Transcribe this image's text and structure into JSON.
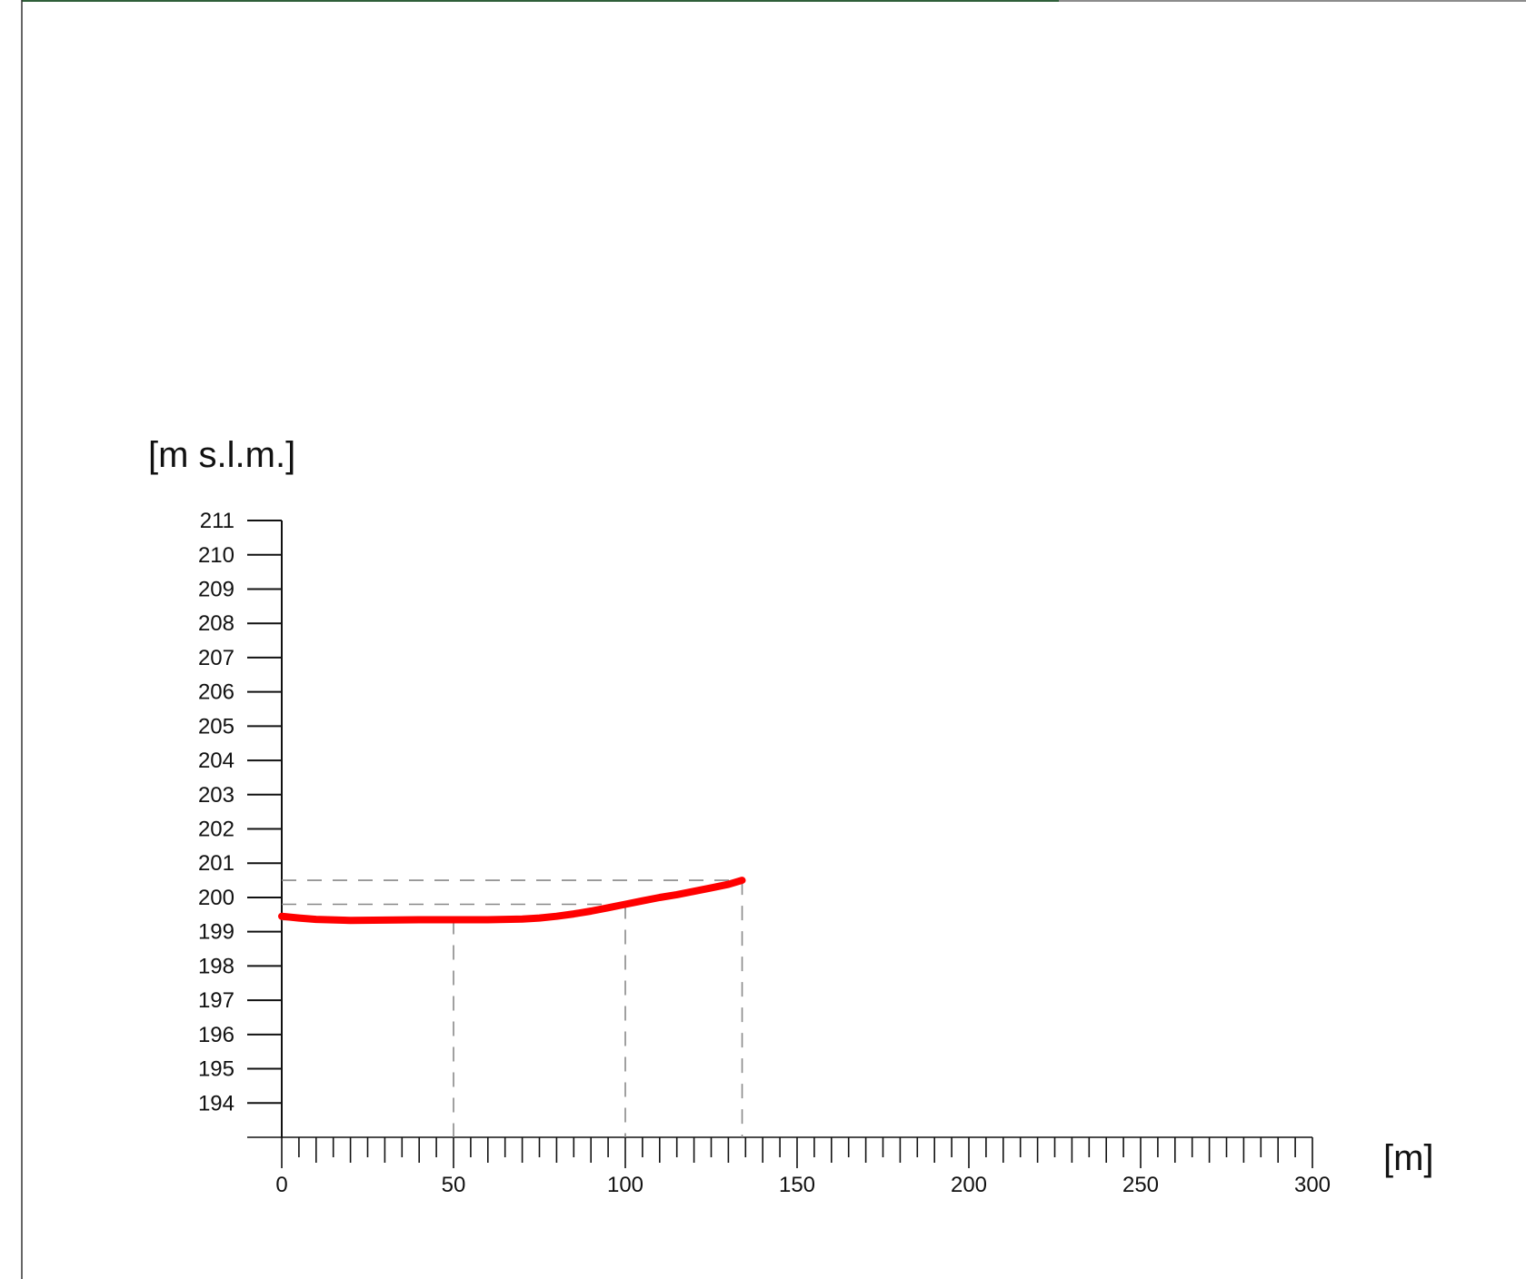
{
  "chart_data": {
    "type": "line",
    "title": "",
    "xlabel": "[m]",
    "ylabel": "[m s.l.m.]",
    "xlim": [
      0,
      300
    ],
    "ylim": [
      193,
      211
    ],
    "x_ticks": [
      "0",
      "50",
      "100",
      "150",
      "200",
      "250",
      "300"
    ],
    "y_ticks": [
      "194",
      "195",
      "196",
      "197",
      "198",
      "199",
      "200",
      "201",
      "202",
      "203",
      "204",
      "205",
      "206",
      "207",
      "208",
      "209",
      "210",
      "211"
    ],
    "x_minor_step": 5,
    "grid": false,
    "legend": "none",
    "colors": {
      "line": "#ff0000",
      "axis": "#111111",
      "guides": "#888888"
    },
    "series": [
      {
        "x": [
          0,
          5,
          10,
          20,
          30,
          40,
          50,
          60,
          70,
          75,
          80,
          85,
          90,
          95,
          100,
          105,
          110,
          115,
          120,
          125,
          130,
          134
        ],
        "y": [
          199.45,
          199.4,
          199.36,
          199.33,
          199.34,
          199.35,
          199.35,
          199.35,
          199.37,
          199.4,
          199.45,
          199.52,
          199.6,
          199.7,
          199.8,
          199.9,
          200.0,
          200.08,
          200.18,
          200.28,
          200.38,
          200.5
        ]
      }
    ],
    "guides": [
      {
        "x": 50,
        "y": 199.35
      },
      {
        "x": 100,
        "y": 199.8
      },
      {
        "x": 134,
        "y": 200.5
      }
    ]
  }
}
